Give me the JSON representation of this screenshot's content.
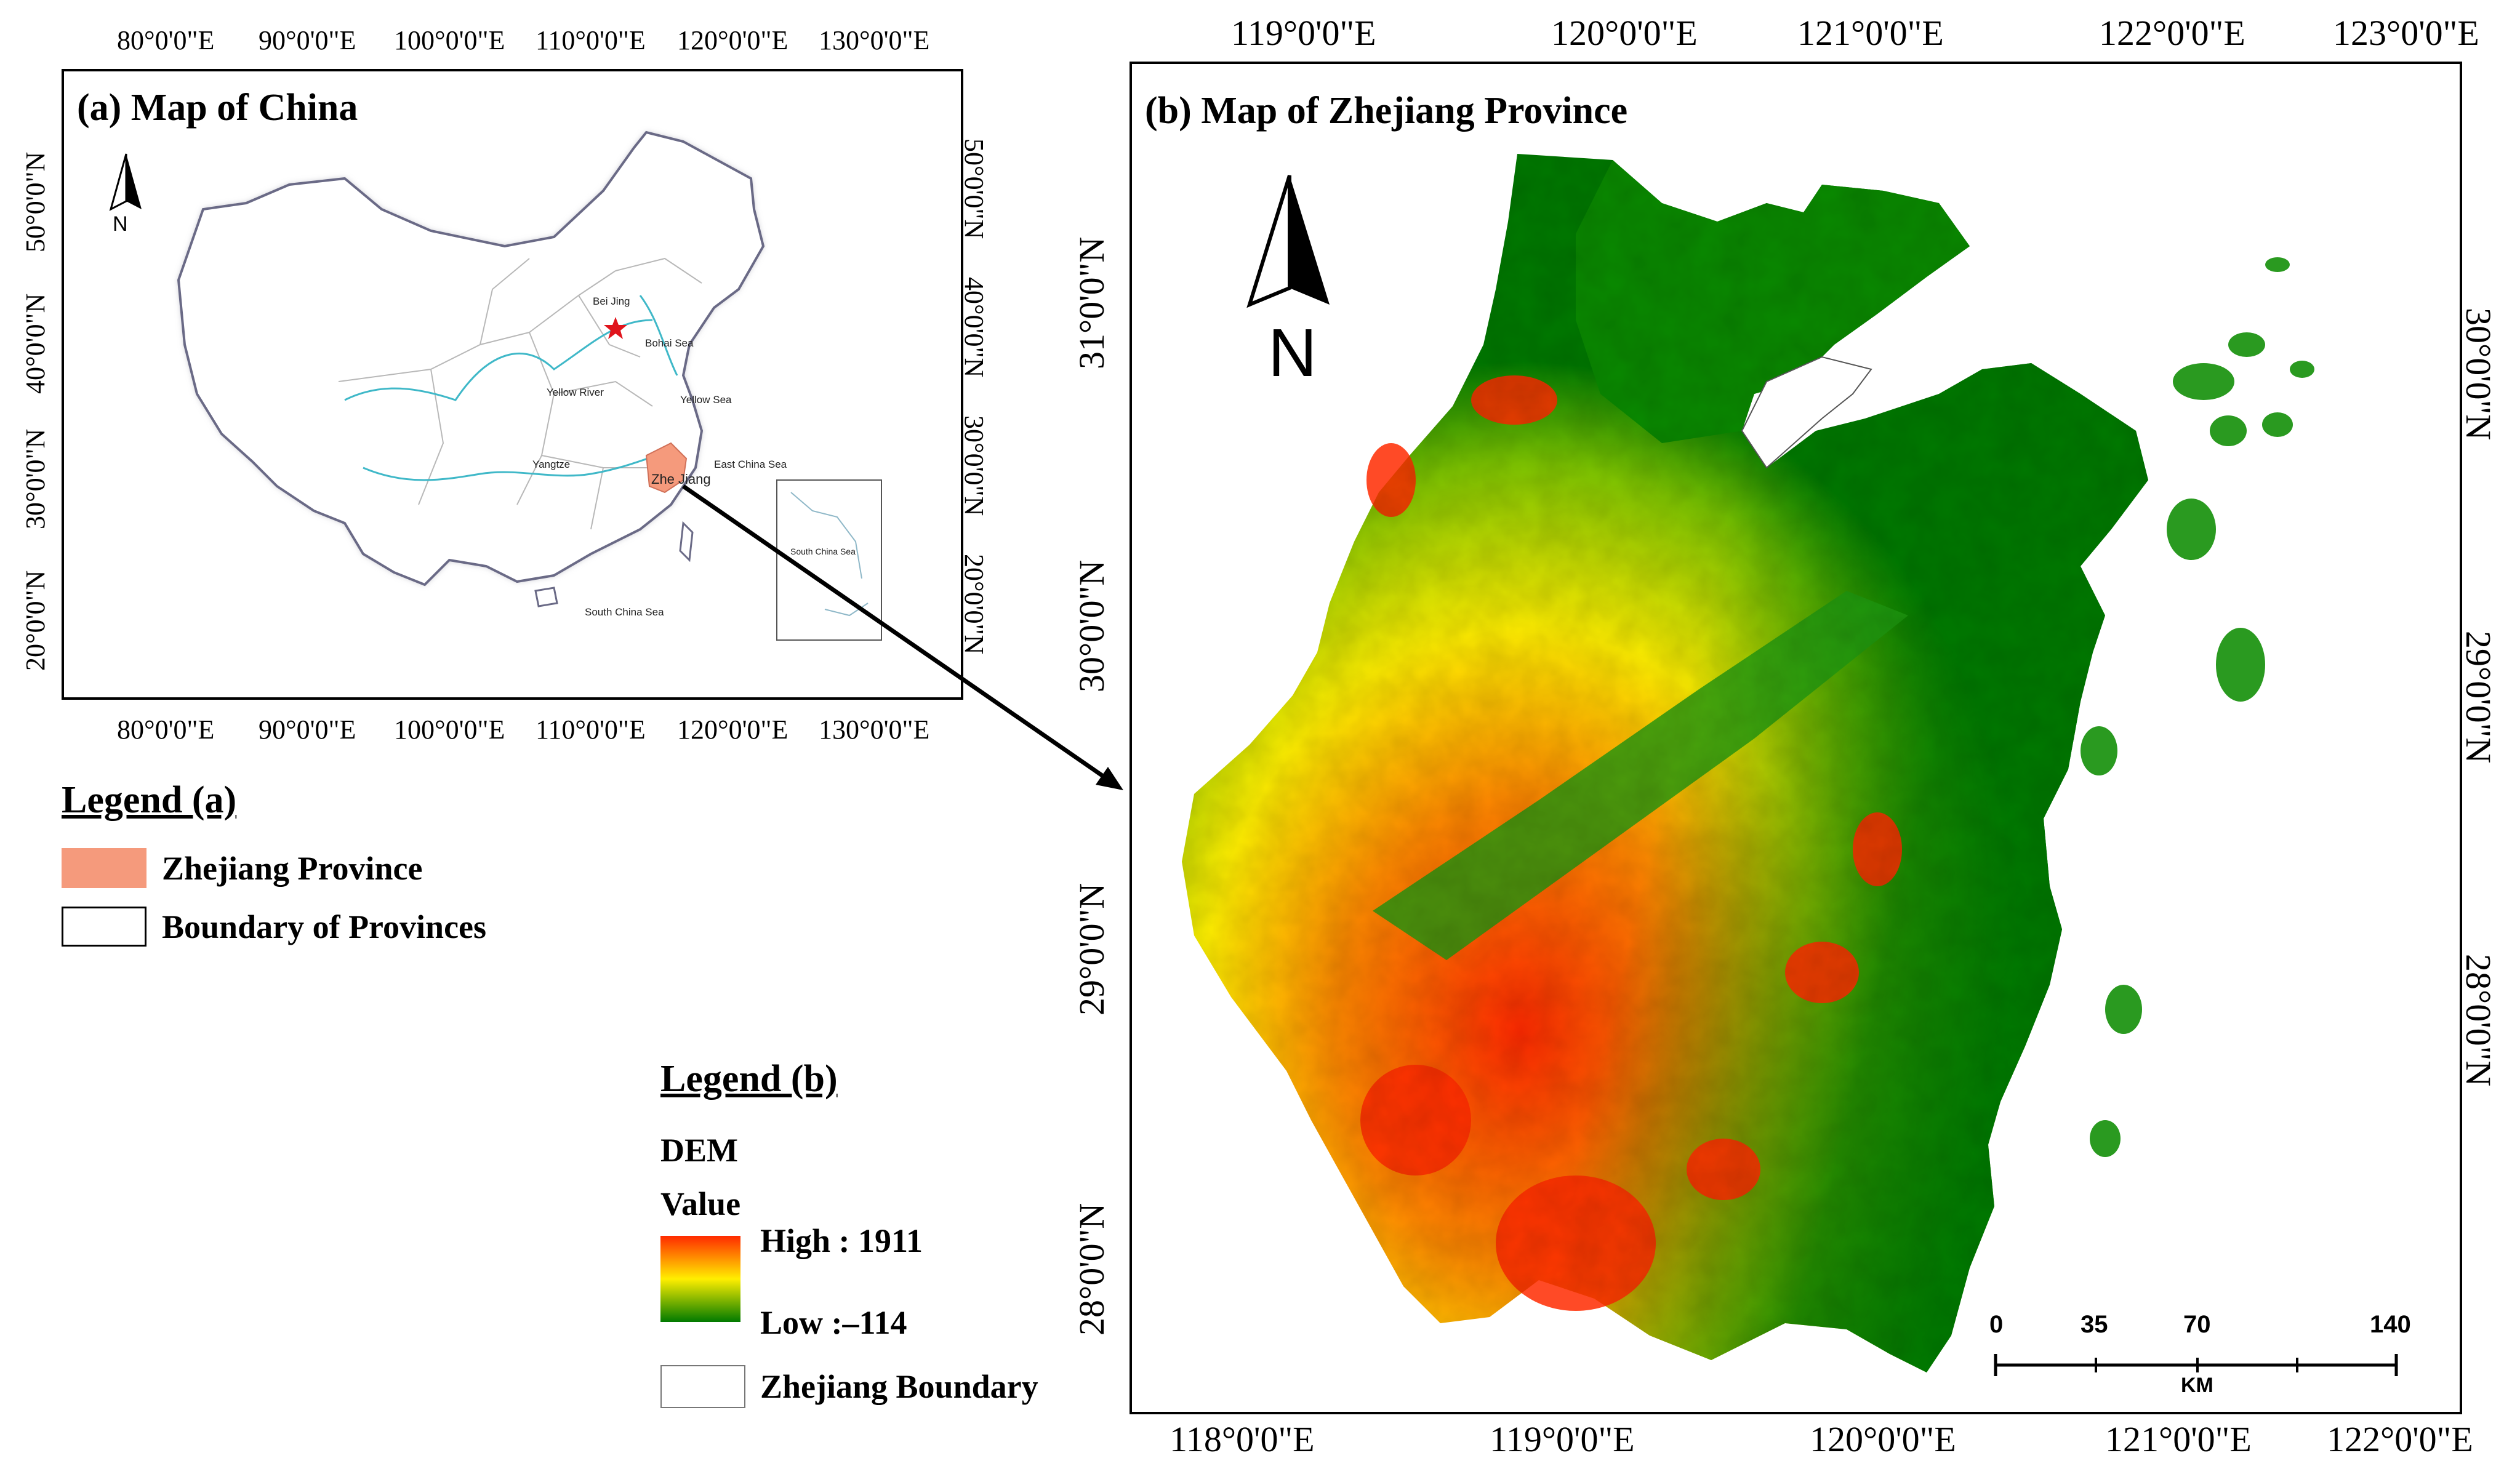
{
  "panel_a": {
    "title": "(a) Map of China",
    "lon_ticks": [
      "80°0'0\"E",
      "90°0'0\"E",
      "100°0'0\"E",
      "110°0'0\"E",
      "120°0'0\"E",
      "130°0'0\"E"
    ],
    "lat_ticks": [
      "50°0'0\"N",
      "40°0'0\"N",
      "30°0'0\"N",
      "20°0'0\"N"
    ],
    "north_label": "N",
    "places": {
      "beijing": "Bei Jing",
      "bohai": "Bohai Sea",
      "yellow_river": "Yellow River",
      "yellow_sea": "Yellow Sea",
      "yangtze": "Yangtze",
      "zhejiang": "Zhe Jiang",
      "east_china_sea": "East China Sea",
      "south_china_sea": "South China Sea",
      "inset_scs": "South China Sea"
    },
    "colors": {
      "zhejiang": "#f59a7c",
      "river": "#3fb8c8",
      "beijing_star": "#e0141c"
    }
  },
  "legend_a": {
    "title": "Legend (a)",
    "items": [
      {
        "label": "Zhejiang Province",
        "color": "#f59a7c"
      },
      {
        "label": "Boundary of Provinces",
        "color": "#ffffff"
      }
    ]
  },
  "panel_b": {
    "title": "(b) Map of Zhejiang Province",
    "top_lon_ticks": [
      "119°0'0\"E",
      "120°0'0\"E",
      "121°0'0\"E",
      "122°0'0\"E",
      "123°0'0\"E"
    ],
    "bottom_lon_ticks": [
      "118°0'0\"E",
      "119°0'0\"E",
      "120°0'0\"E",
      "121°0'0\"E",
      "122°0'0\"E"
    ],
    "left_lat_ticks": [
      "31°0'0\"N",
      "30°0'0\"N",
      "29°0'0\"N",
      "28°0'0\"N"
    ],
    "right_lat_ticks": [
      "30°0'0\"N",
      "29°0'0\"N",
      "28°0'0\"N"
    ],
    "north_label": "N",
    "scalebar": {
      "ticks": [
        "0",
        "35",
        "70",
        "140"
      ],
      "unit": "KM"
    },
    "colors": {
      "high": "#ff2a00",
      "mid": "#ffee00",
      "low": "#007a00"
    }
  },
  "legend_b": {
    "title": "Legend (b)",
    "layer": "DEM",
    "value_label": "Value",
    "high": "High : 1911",
    "low": "Low :–114",
    "boundary": "Zhejiang Boundary"
  }
}
